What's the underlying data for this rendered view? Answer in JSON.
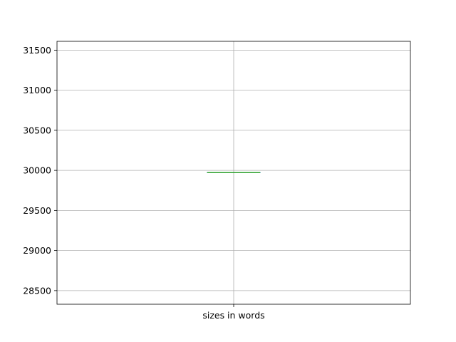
{
  "chart_data": {
    "type": "box",
    "categories": [
      "sizes in words"
    ],
    "series": [
      {
        "values": [
          29972
        ],
        "q1": 29972,
        "median": 29972,
        "q3": 29972,
        "whisker_low": 29972,
        "whisker_high": 29972
      }
    ],
    "title": "",
    "xlabel": "",
    "ylabel": "",
    "ylim": [
      28330,
      31610
    ],
    "yticks": [
      28500,
      29000,
      29500,
      30000,
      30500,
      31000,
      31500
    ],
    "grid": true,
    "legend": "none",
    "colors": {
      "median": "#2ca02c",
      "box": "#1f77b4",
      "grid": "#b0b0b0",
      "axes": "#000000"
    }
  }
}
